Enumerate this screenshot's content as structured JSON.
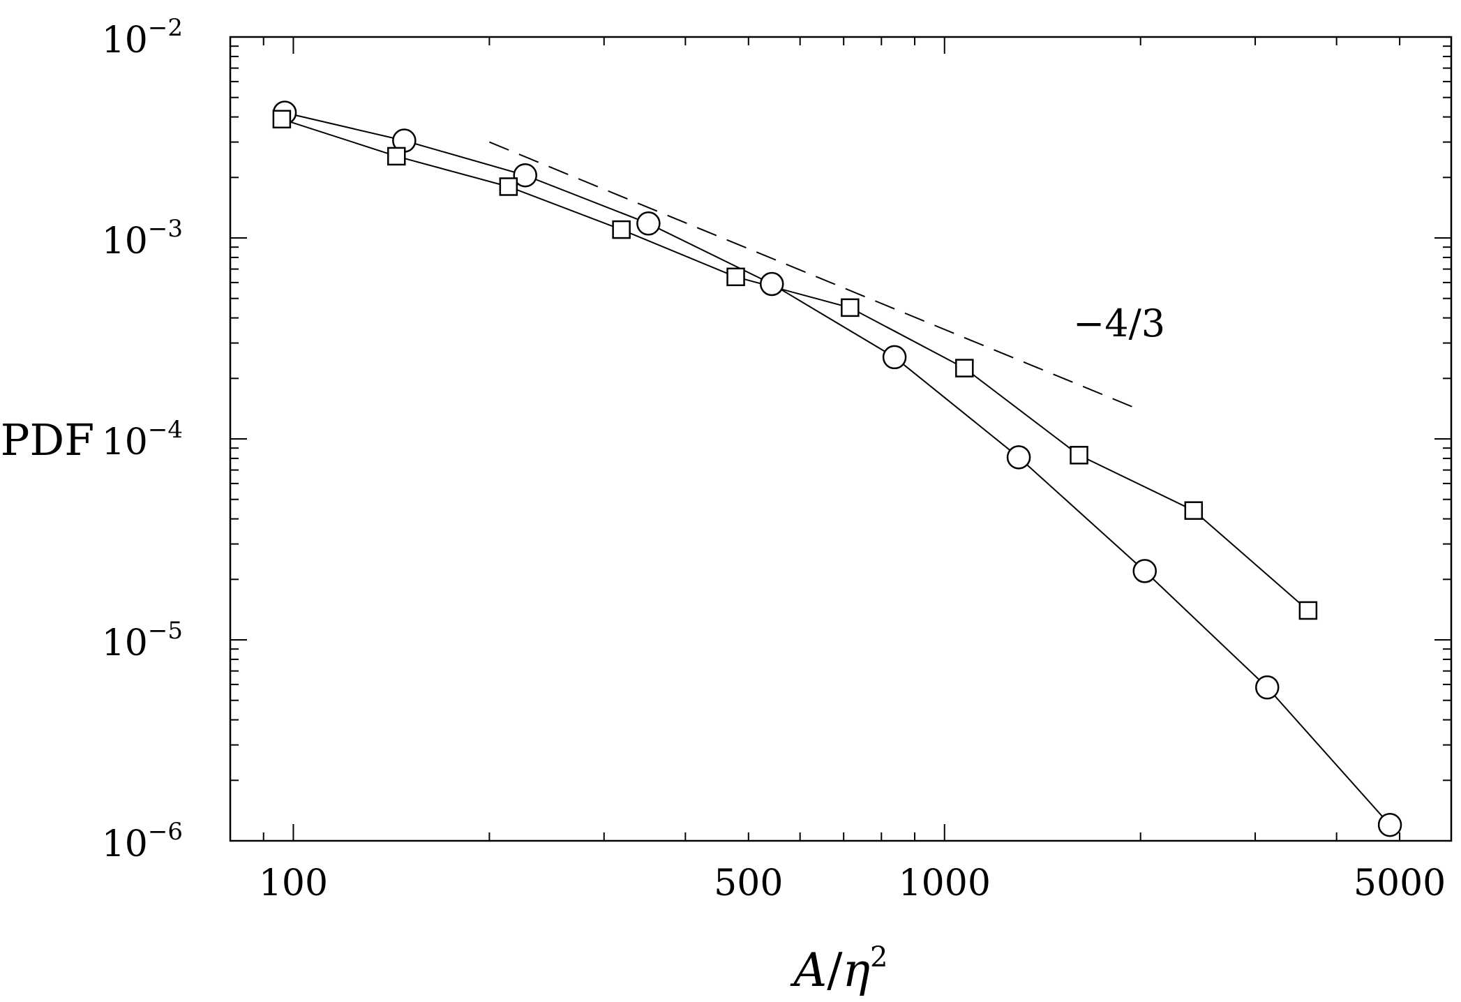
{
  "chart_data": {
    "type": "scatter",
    "xlabel_main": "A",
    "xlabel_slash": "/",
    "xlabel_sym": "η",
    "xlabel_exp": "2",
    "ylabel": "PDF",
    "xscale": "log",
    "yscale": "log",
    "xlim": [
      80,
      6000
    ],
    "ylim": [
      1e-06,
      0.01
    ],
    "x_ticks": [
      {
        "value": 100,
        "label": "100"
      },
      {
        "value": 500,
        "label": "500"
      },
      {
        "value": 1000,
        "label": "1000"
      },
      {
        "value": 5000,
        "label": "5000"
      }
    ],
    "y_ticks": [
      {
        "value": 1e-06,
        "base": "10",
        "exp": "−6"
      },
      {
        "value": 1e-05,
        "base": "10",
        "exp": "−5"
      },
      {
        "value": 0.0001,
        "base": "10",
        "exp": "−4"
      },
      {
        "value": 0.001,
        "base": "10",
        "exp": "−3"
      },
      {
        "value": 0.01,
        "base": "10",
        "exp": "−2"
      }
    ],
    "series": [
      {
        "marker": "circle",
        "x": [
          97,
          148,
          227,
          351,
          543,
          838,
          1300,
          2030,
          3130,
          4830
        ],
        "y": [
          0.0042,
          0.00305,
          0.00205,
          0.00118,
          0.00059,
          0.000255,
          8.1e-05,
          2.2e-05,
          5.8e-06,
          1.2e-06
        ]
      },
      {
        "marker": "square",
        "x": [
          96,
          144,
          214,
          319,
          478,
          716,
          1073,
          1609,
          2413,
          3617
        ],
        "y": [
          0.0039,
          0.00255,
          0.0018,
          0.0011,
          0.00064,
          0.00045,
          0.000225,
          8.3e-05,
          4.4e-05,
          1.4e-05
        ]
      }
    ],
    "reference_line": {
      "style": "dashed",
      "x": [
        200,
        2000
      ],
      "y": [
        0.003,
        0.000139
      ],
      "label": "−4/3"
    }
  }
}
